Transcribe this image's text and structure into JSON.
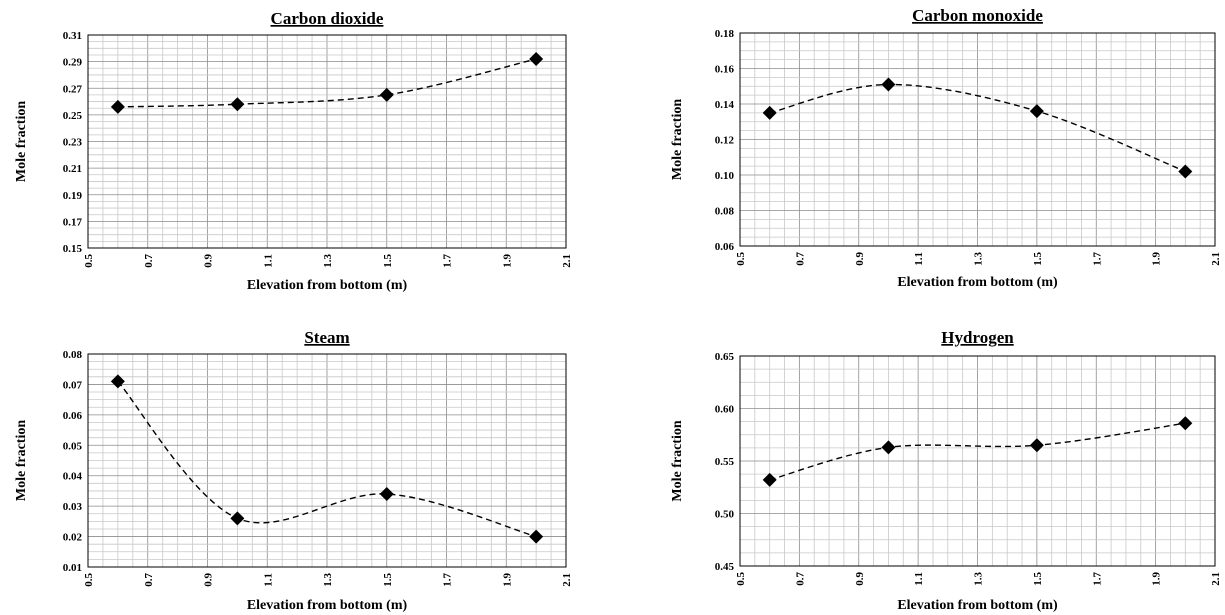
{
  "chart_data": [
    {
      "type": "scatter",
      "title": "Carbon dioxide",
      "xlabel": "Elevation from bottom (m)",
      "ylabel": "Mole fraction",
      "xlim": [
        0.5,
        2.1
      ],
      "ylim": [
        0.15,
        0.31
      ],
      "xticks": [
        "0.5",
        "0.7",
        "0.9",
        "1.1",
        "1.3",
        "1.5",
        "1.7",
        "1.9",
        "2.1"
      ],
      "yticks": [
        "0.15",
        "0.17",
        "0.19",
        "0.21",
        "0.23",
        "0.25",
        "0.27",
        "0.29",
        "0.31"
      ],
      "grid": true,
      "marker": "diamond",
      "trendline": "dashed",
      "points": [
        {
          "x": 0.6,
          "y": 0.256
        },
        {
          "x": 1.0,
          "y": 0.258
        },
        {
          "x": 1.5,
          "y": 0.265
        },
        {
          "x": 2.0,
          "y": 0.292
        }
      ]
    },
    {
      "type": "scatter",
      "title": "Carbon monoxide",
      "xlabel": "Elevation from bottom (m)",
      "ylabel": "Mole fraction",
      "xlim": [
        0.5,
        2.1
      ],
      "ylim": [
        0.06,
        0.18
      ],
      "xticks": [
        "0.5",
        "0.7",
        "0.9",
        "1.1",
        "1.3",
        "1.5",
        "1.7",
        "1.9",
        "2.1"
      ],
      "yticks": [
        "0.06",
        "0.08",
        "0.10",
        "0.12",
        "0.14",
        "0.16",
        "0.18"
      ],
      "grid": true,
      "marker": "diamond",
      "trendline": "dashed",
      "points": [
        {
          "x": 0.6,
          "y": 0.135
        },
        {
          "x": 1.0,
          "y": 0.151
        },
        {
          "x": 1.5,
          "y": 0.136
        },
        {
          "x": 2.0,
          "y": 0.102
        }
      ]
    },
    {
      "type": "scatter",
      "title": "Steam",
      "xlabel": "Elevation from bottom (m)",
      "ylabel": "Mole fraction",
      "xlim": [
        0.5,
        2.1
      ],
      "ylim": [
        0.01,
        0.08
      ],
      "xticks": [
        "0.5",
        "0.7",
        "0.9",
        "1.1",
        "1.3",
        "1.5",
        "1.7",
        "1.9",
        "2.1"
      ],
      "yticks": [
        "0.01",
        "0.02",
        "0.03",
        "0.04",
        "0.05",
        "0.06",
        "0.07",
        "0.08"
      ],
      "grid": true,
      "marker": "diamond",
      "trendline": "dashed",
      "points": [
        {
          "x": 0.6,
          "y": 0.071
        },
        {
          "x": 1.0,
          "y": 0.026
        },
        {
          "x": 1.5,
          "y": 0.034
        },
        {
          "x": 2.0,
          "y": 0.02
        }
      ]
    },
    {
      "type": "scatter",
      "title": "Hydrogen",
      "xlabel": "Elevation from bottom (m)",
      "ylabel": "Mole fraction",
      "xlim": [
        0.5,
        2.1
      ],
      "ylim": [
        0.45,
        0.65
      ],
      "xticks": [
        "0.5",
        "0.7",
        "0.9",
        "1.1",
        "1.3",
        "1.5",
        "1.7",
        "1.9",
        "2.1"
      ],
      "yticks": [
        "0.45",
        "0.50",
        "0.55",
        "0.60",
        "0.65"
      ],
      "grid": true,
      "marker": "diamond",
      "trendline": "dashed",
      "points": [
        {
          "x": 0.6,
          "y": 0.532
        },
        {
          "x": 1.0,
          "y": 0.563
        },
        {
          "x": 1.5,
          "y": 0.565
        },
        {
          "x": 2.0,
          "y": 0.586
        }
      ]
    }
  ],
  "colors": {
    "grid": "#c8c8c8",
    "major_grid": "#8c8c8c",
    "axis": "#000000",
    "marker": "#000000",
    "trendline": "#000000"
  }
}
